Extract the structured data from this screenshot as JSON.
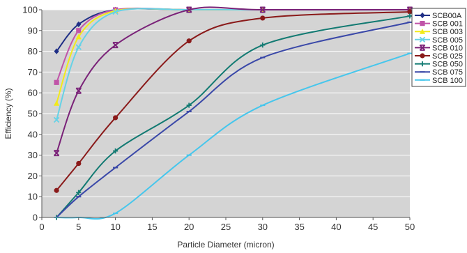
{
  "chart_data": {
    "type": "line",
    "title": "",
    "xlabel": "Particle Diameter (micron)",
    "ylabel": "Efficiency (%)",
    "xlim": [
      0,
      50
    ],
    "ylim": [
      0,
      100
    ],
    "x_ticks": [
      "0",
      "5",
      "10",
      "15",
      "20",
      "25",
      "30",
      "35",
      "40",
      "45",
      "50"
    ],
    "y_ticks": [
      "0",
      "10",
      "20",
      "30",
      "40",
      "50",
      "60",
      "70",
      "80",
      "90",
      "100"
    ],
    "grid": "horizontal",
    "legend_position": "right",
    "plot_background": "#d4d4d4",
    "x": [
      2,
      5,
      10,
      20,
      30,
      50
    ],
    "series": [
      {
        "name": "SCB00A",
        "color": "#1f2f86",
        "marker": "diamond",
        "values": [
          80,
          93,
          100,
          100,
          100,
          100
        ]
      },
      {
        "name": "SCB 001",
        "color": "#c054a8",
        "marker": "square",
        "values": [
          65,
          90,
          100,
          100,
          100,
          100
        ]
      },
      {
        "name": "SCB 003",
        "color": "#f2ea1a",
        "marker": "triangle",
        "values": [
          55,
          87,
          99.5,
          100,
          100,
          100
        ]
      },
      {
        "name": "SCB 005",
        "color": "#66d2e6",
        "marker": "x",
        "values": [
          47,
          82,
          99,
          100,
          100,
          100
        ]
      },
      {
        "name": "SCB 010",
        "color": "#7a2278",
        "marker": "x-square",
        "values": [
          31,
          61,
          83,
          100,
          100,
          100
        ]
      },
      {
        "name": "SCB 025",
        "color": "#8a1a1a",
        "marker": "circle",
        "values": [
          13,
          26,
          48,
          85,
          96,
          99
        ]
      },
      {
        "name": "SCB 050",
        "color": "#127a72",
        "marker": "plus",
        "values": [
          0,
          12,
          32,
          54,
          83,
          97
        ]
      },
      {
        "name": "SCB 075",
        "color": "#3a48a8",
        "marker": "dash",
        "values": [
          0,
          10,
          24,
          51,
          77,
          94
        ]
      },
      {
        "name": "SCB 100",
        "color": "#46c6ec",
        "marker": "dash",
        "values": [
          0,
          0,
          2,
          30,
          54,
          79
        ]
      }
    ]
  }
}
